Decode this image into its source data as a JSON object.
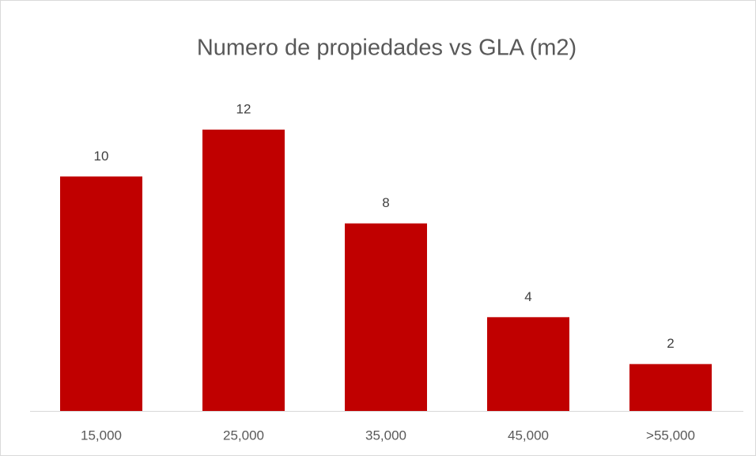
{
  "chart_data": {
    "type": "bar",
    "title": "Numero de propiedades vs GLA (m2)",
    "categories": [
      "15,000",
      "25,000",
      "35,000",
      "45,000",
      ">55,000"
    ],
    "values": [
      10,
      12,
      8,
      4,
      2
    ],
    "color": "#c00000"
  }
}
